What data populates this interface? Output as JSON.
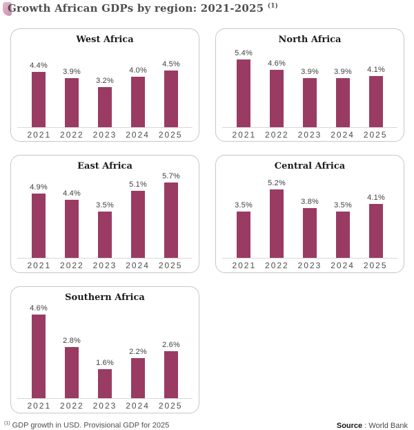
{
  "header": {
    "title": "Growth African GDPs by region: 2021-2025",
    "superscript": "(1)"
  },
  "chart_data": {
    "type": "bar",
    "categories": [
      "2021",
      "2022",
      "2023",
      "2024",
      "2025"
    ],
    "unit": "%",
    "bar_color": "#9a3b63",
    "grid": false,
    "charts": [
      {
        "title": "West Africa",
        "values": [
          4.4,
          3.9,
          3.2,
          4.0,
          4.5
        ],
        "labels": [
          "4.4%",
          "3.9%",
          "3.2%",
          "4.0%",
          "4.5%"
        ],
        "ylim": [
          0,
          6.5
        ]
      },
      {
        "title": "North Africa",
        "values": [
          5.4,
          4.6,
          3.9,
          3.9,
          4.1
        ],
        "labels": [
          "5.4%",
          "4.6%",
          "3.9%",
          "3.9%",
          "4.1%"
        ],
        "ylim": [
          0,
          6.5
        ]
      },
      {
        "title": "East Africa",
        "values": [
          4.9,
          4.4,
          3.5,
          5.1,
          5.7
        ],
        "labels": [
          "4.9%",
          "4.4%",
          "3.5%",
          "5.1%",
          "5.7%"
        ],
        "ylim": [
          0,
          6.5
        ]
      },
      {
        "title": "Central Africa",
        "values": [
          3.5,
          5.2,
          3.8,
          3.5,
          4.1
        ],
        "labels": [
          "3.5%",
          "5.2%",
          "3.8%",
          "3.5%",
          "4.1%"
        ],
        "ylim": [
          0,
          6.5
        ]
      },
      {
        "title": "Southern Africa",
        "values": [
          4.6,
          2.8,
          1.6,
          2.2,
          2.6
        ],
        "labels": [
          "4.6%",
          "2.8%",
          "1.6%",
          "2.2%",
          "2.6%"
        ],
        "ylim": [
          0,
          5.2
        ]
      }
    ]
  },
  "footer": {
    "footnote_superscript": "(1)",
    "footnote": "GDP growth in USD. Provisional GDP for 2025",
    "source_label": "Source",
    "source_separator": " : ",
    "source_value": "World Bank"
  }
}
